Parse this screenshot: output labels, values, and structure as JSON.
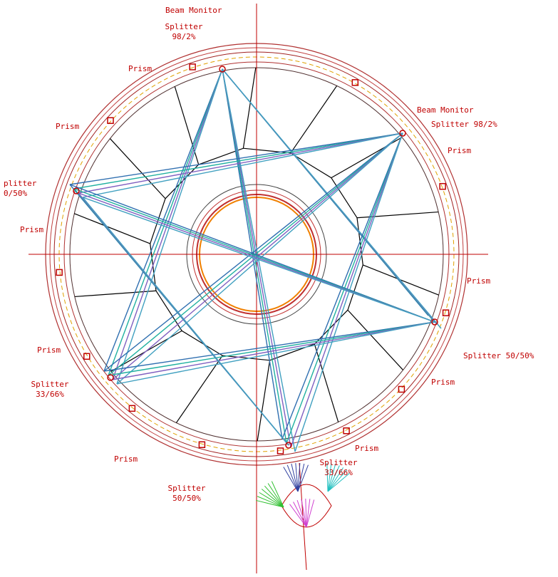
{
  "labels": [
    {
      "lines": [
        "Beam Monitor"
      ]
    },
    {
      "lines": [
        "Splitter",
        "98/2%"
      ]
    },
    {
      "lines": [
        "Prism"
      ]
    },
    {
      "lines": [
        "Prism"
      ]
    },
    {
      "lines": [
        "Beam Monitor"
      ]
    },
    {
      "lines": [
        "Splitter 98/2%"
      ]
    },
    {
      "lines": [
        "Prism"
      ]
    },
    {
      "lines": [
        "plitter",
        "0/50%"
      ]
    },
    {
      "lines": [
        "Prism"
      ]
    },
    {
      "lines": [
        "Prism"
      ]
    },
    {
      "lines": [
        "Prism"
      ]
    },
    {
      "lines": [
        "Splitter 50/50%"
      ]
    },
    {
      "lines": [
        "Splitter",
        "33/66%"
      ]
    },
    {
      "lines": [
        "Prism"
      ]
    },
    {
      "lines": [
        "Prism"
      ]
    },
    {
      "lines": [
        "Prism"
      ]
    },
    {
      "lines": [
        "Splitter",
        "33/66%"
      ]
    },
    {
      "lines": [
        "Splitter",
        "50/50%"
      ]
    }
  ]
}
